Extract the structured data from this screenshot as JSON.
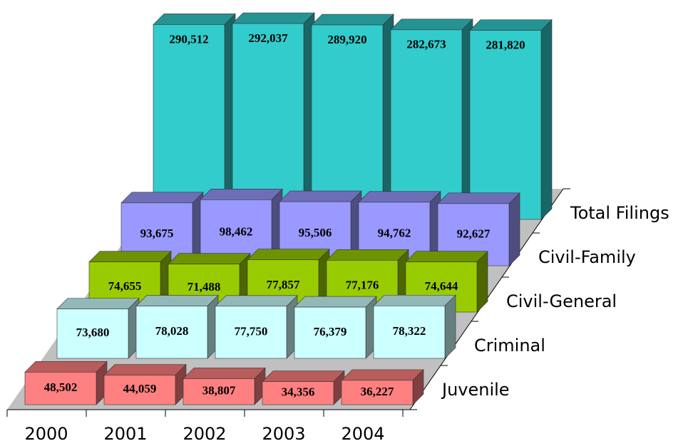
{
  "chart_data": {
    "type": "bar3d",
    "categories": [
      "2000",
      "2001",
      "2002",
      "2003",
      "2004"
    ],
    "series": [
      {
        "name": "Juvenile",
        "color": "#ff8080",
        "values": [
          48502,
          44059,
          38807,
          34356,
          36227
        ],
        "value_labels": [
          "48,502",
          "44,059",
          "38,807",
          "34,356",
          "36,227"
        ]
      },
      {
        "name": "Criminal",
        "color": "#ccffff",
        "values": [
          73680,
          78028,
          77750,
          76379,
          78322
        ],
        "value_labels": [
          "73,680",
          "78,028",
          "77,750",
          "76,379",
          "78,322"
        ]
      },
      {
        "name": "Civil-General",
        "color": "#99cc00",
        "values": [
          74655,
          71488,
          77857,
          77176,
          74644
        ],
        "value_labels": [
          "74,655",
          "71,488",
          "77,857",
          "77,176",
          "74,644"
        ]
      },
      {
        "name": "Civil-Family",
        "color": "#9999ff",
        "values": [
          93675,
          98462,
          95506,
          94762,
          92627
        ],
        "value_labels": [
          "93,675",
          "98,462",
          "95,506",
          "94,762",
          "92,627"
        ]
      },
      {
        "name": "Total Filings",
        "color": "#33cccc",
        "values": [
          290512,
          292037,
          289920,
          282673,
          281820
        ],
        "value_labels": [
          "290,512",
          "292,037",
          "289,920",
          "282,673",
          "281,820"
        ]
      }
    ]
  }
}
